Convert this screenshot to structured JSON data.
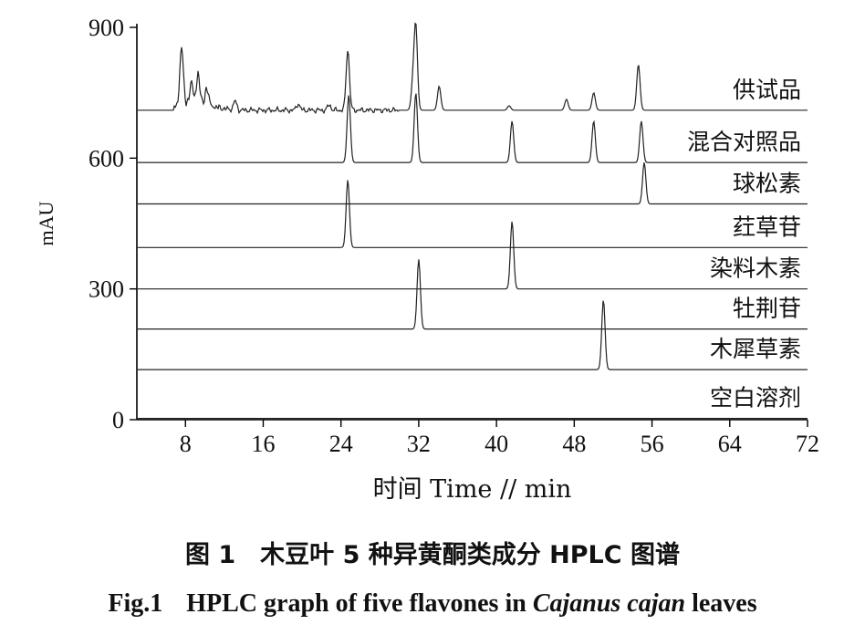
{
  "chart_data": {
    "type": "line",
    "ylabel": "mAU",
    "xlabel": "时间 Time // min",
    "xlim": [
      3,
      72
    ],
    "ylim": [
      0,
      900
    ],
    "x_ticks": [
      8,
      16,
      24,
      32,
      40,
      48,
      56,
      64,
      72
    ],
    "y_ticks": [
      0,
      300,
      600,
      900
    ],
    "grid": false,
    "series": [
      {
        "name": "供试品",
        "baseline": 710,
        "noise": true,
        "peaks": [
          [
            7.6,
            140
          ],
          [
            8.6,
            50
          ],
          [
            9.3,
            70
          ],
          [
            10.2,
            40
          ],
          [
            13.1,
            20
          ],
          [
            19.6,
            15
          ],
          [
            22.8,
            12
          ],
          [
            24.7,
            140
          ],
          [
            31.7,
            190
          ],
          [
            31.4,
            60
          ],
          [
            34.1,
            55
          ],
          [
            41.3,
            10
          ],
          [
            47.2,
            25
          ],
          [
            50.0,
            40
          ],
          [
            54.6,
            105
          ]
        ]
      },
      {
        "name": "混合对照品",
        "baseline": 590,
        "peaks": [
          [
            24.8,
            155
          ],
          [
            31.7,
            160
          ],
          [
            41.6,
            95
          ],
          [
            50.0,
            95
          ],
          [
            54.9,
            95
          ]
        ]
      },
      {
        "name": "球松素",
        "baseline": 495,
        "peaks": [
          [
            55.2,
            95
          ]
        ]
      },
      {
        "name": "荭草苷",
        "baseline": 395,
        "peaks": [
          [
            24.7,
            155
          ]
        ]
      },
      {
        "name": "染料木素",
        "baseline": 300,
        "peaks": [
          [
            41.6,
            155
          ]
        ]
      },
      {
        "name": "牡荆苷",
        "baseline": 208,
        "peaks": [
          [
            32.0,
            160
          ]
        ]
      },
      {
        "name": "木犀草素",
        "baseline": 115,
        "peaks": [
          [
            51.0,
            160
          ]
        ]
      },
      {
        "name": "空白溶剂",
        "baseline": 3,
        "peaks": []
      }
    ]
  },
  "caption": {
    "cn": "图 1　木豆叶 5 种异黄酮类成分 HPLC 图谱",
    "en_label": "Fig.1",
    "en_pre": "HPLC graph of five flavones in",
    "en_italic": "Cajanus cajan",
    "en_post": "leaves"
  }
}
